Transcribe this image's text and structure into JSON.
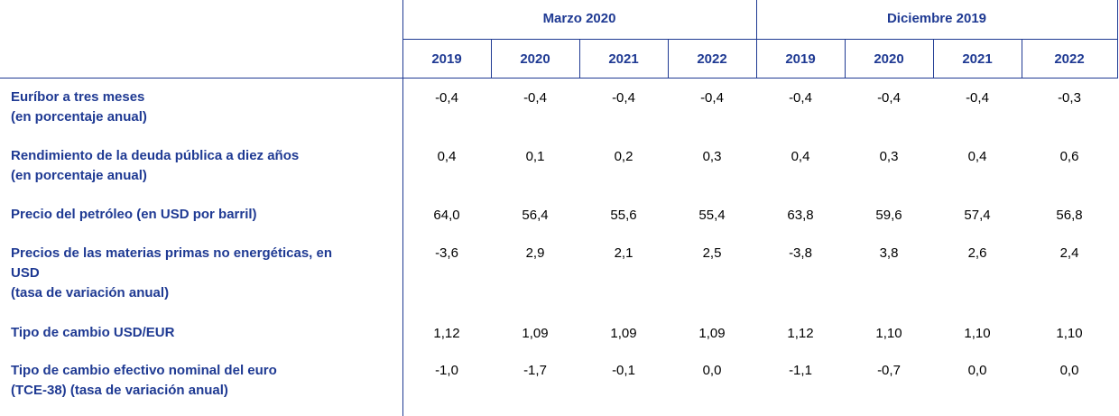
{
  "groups": [
    {
      "label": "Marzo 2020"
    },
    {
      "label": "Diciembre 2019"
    }
  ],
  "years": [
    "2019",
    "2020",
    "2021",
    "2022",
    "2019",
    "2020",
    "2021",
    "2022"
  ],
  "rows": [
    {
      "label_lines": [
        "Euríbor a tres meses",
        "(en porcentaje anual)"
      ],
      "values": [
        "-0,4",
        "-0,4",
        "-0,4",
        "-0,4",
        "-0,4",
        "-0,4",
        "-0,4",
        "-0,3"
      ]
    },
    {
      "label_lines": [
        "Rendimiento de la deuda pública a diez años",
        "(en porcentaje anual)"
      ],
      "values": [
        "0,4",
        "0,1",
        "0,2",
        "0,3",
        "0,4",
        "0,3",
        "0,4",
        "0,6"
      ]
    },
    {
      "label_lines": [
        "Precio del petróleo (en USD por barril)"
      ],
      "values": [
        "64,0",
        "56,4",
        "55,6",
        "55,4",
        "63,8",
        "59,6",
        "57,4",
        "56,8"
      ]
    },
    {
      "label_lines": [
        "Precios de las materias primas no energéticas, en",
        "USD",
        "(tasa de variación anual)"
      ],
      "values": [
        "-3,6",
        "2,9",
        "2,1",
        "2,5",
        "-3,8",
        "3,8",
        "2,6",
        "2,4"
      ]
    },
    {
      "label_lines": [
        "Tipo de cambio USD/EUR"
      ],
      "values": [
        "1,12",
        "1,09",
        "1,09",
        "1,09",
        "1,12",
        "1,10",
        "1,10",
        "1,10"
      ]
    },
    {
      "label_lines": [
        "Tipo de cambio efectivo nominal del euro",
        "(TCE-38) (tasa de variación anual)"
      ],
      "values": [
        "-1,0",
        "-1,7",
        "-0,1",
        "0,0",
        "-1,1",
        "-0,7",
        "0,0",
        "0,0"
      ]
    }
  ]
}
